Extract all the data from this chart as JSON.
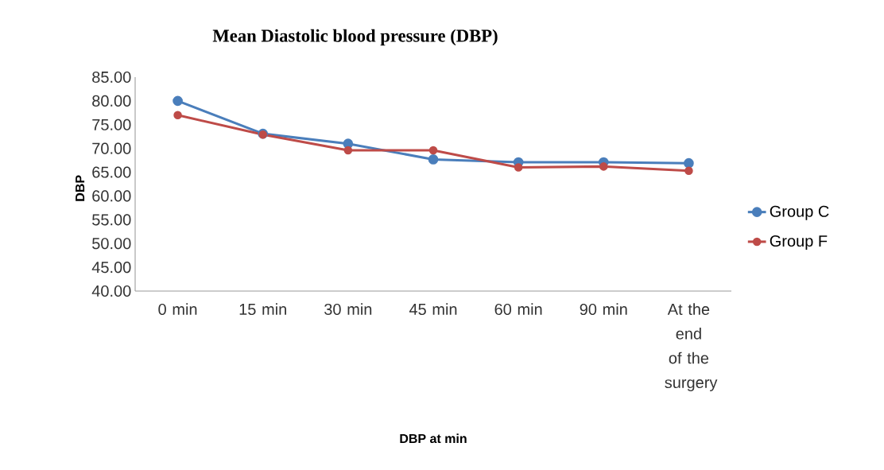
{
  "chart_data": {
    "type": "line",
    "title": "Mean Diastolic blood pressure (DBP)",
    "xlabel": "DBP at min",
    "ylabel": "DBP",
    "categories": [
      "0 min",
      "15 min",
      "30 min",
      "45 min",
      "60 min",
      "90 min",
      "At the end of the surgery"
    ],
    "series": [
      {
        "name": "Group C",
        "color": "#4a7ebb",
        "values": [
          80.0,
          73.1,
          71.0,
          67.7,
          67.1,
          67.1,
          66.9
        ]
      },
      {
        "name": "Group F",
        "color": "#be4b48",
        "values": [
          77.0,
          72.9,
          69.6,
          69.6,
          66.0,
          66.2,
          65.3
        ]
      }
    ],
    "ylim": [
      40,
      85
    ],
    "yticks": [
      {
        "value": 40,
        "label": "40.00"
      },
      {
        "value": 45,
        "label": "45.00"
      },
      {
        "value": 50,
        "label": "50.00"
      },
      {
        "value": 55,
        "label": "55.00"
      },
      {
        "value": 60,
        "label": "60.00"
      },
      {
        "value": 65,
        "label": "65.00"
      },
      {
        "value": 70,
        "label": "70.00"
      },
      {
        "value": 75,
        "label": "75.00"
      },
      {
        "value": 80,
        "label": "80.00"
      },
      {
        "value": 85,
        "label": "85.00"
      }
    ],
    "grid": false,
    "legend": "right",
    "marker": "circle",
    "line_style": "solid"
  }
}
